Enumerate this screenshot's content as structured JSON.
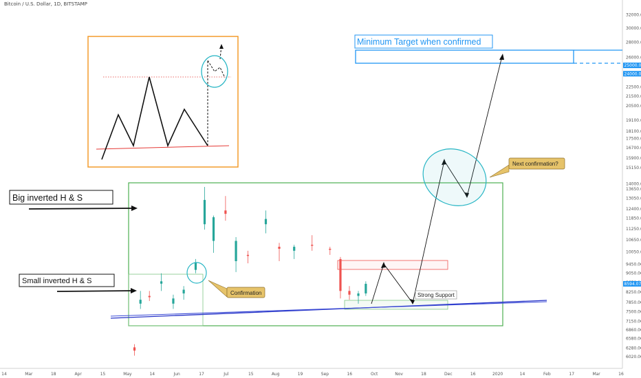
{
  "header": {
    "title": "Bitcoin / U.S. Dollar, 1D, BITSTAMP"
  },
  "chart_data": {
    "type": "candlestick",
    "symbol": "Bitcoin / U.S. Dollar",
    "interval": "1D",
    "exchange": "BITSTAMP",
    "y_scale": "log",
    "ylim": [
      5800,
      33500
    ],
    "y_ticks": [
      "32000.00",
      "30000.00",
      "28000.00",
      "26000.00",
      "24000.00",
      "22500.00",
      "21500.00",
      "20500.00",
      "19100.00",
      "18100.00",
      "17500.00",
      "16700.00",
      "15900.00",
      "15150.00",
      "14000.00",
      "13650.00",
      "13050.00",
      "12400.00",
      "11850.00",
      "11250.00",
      "10650.00",
      "10050.00",
      "9450.00",
      "9050.00",
      "8650.00",
      "8250.00",
      "7850.00",
      "7500.00",
      "7150.00",
      "6860.00",
      "6580.00",
      "6280.00",
      "6020.00"
    ],
    "x_ticks": [
      "14",
      "Mar",
      "18",
      "Apr",
      "15",
      "May",
      "14",
      "Jun",
      "17",
      "Jul",
      "15",
      "Aug",
      "19",
      "Sep",
      "16",
      "Oct",
      "Nov",
      "18",
      "Dec",
      "16",
      "2020",
      "14",
      "Feb",
      "17",
      "Mar",
      "16"
    ],
    "price_badges": [
      {
        "label": "25000.00",
        "value": 25000,
        "color": "#2196f3"
      },
      {
        "label": "24000.00",
        "value": 24000,
        "color": "#2196f3"
      },
      {
        "label": "8594.07",
        "value": 8594.07,
        "color": "#2196f3"
      }
    ],
    "candles_ohlc_approx": [
      {
        "date": "2019-05-10",
        "o": 6300,
        "h": 6400,
        "l": 6050,
        "c": 6200
      },
      {
        "date": "2019-05-14",
        "o": 7800,
        "h": 8300,
        "l": 7600,
        "c": 7950
      },
      {
        "date": "2019-05-20",
        "o": 8100,
        "h": 8300,
        "l": 7900,
        "c": 8050
      },
      {
        "date": "2019-05-28",
        "o": 8600,
        "h": 9050,
        "l": 8300,
        "c": 8700
      },
      {
        "date": "2019-06-05",
        "o": 7800,
        "h": 8150,
        "l": 7600,
        "c": 8000
      },
      {
        "date": "2019-06-12",
        "o": 8200,
        "h": 8500,
        "l": 7950,
        "c": 8350
      },
      {
        "date": "2019-06-20",
        "o": 9200,
        "h": 9700,
        "l": 9050,
        "c": 9550
      },
      {
        "date": "2019-06-26",
        "o": 11500,
        "h": 13800,
        "l": 11200,
        "c": 12950
      },
      {
        "date": "2019-07-02",
        "o": 10600,
        "h": 12000,
        "l": 10000,
        "c": 11900
      },
      {
        "date": "2019-07-10",
        "o": 12300,
        "h": 13200,
        "l": 11700,
        "c": 12100
      },
      {
        "date": "2019-07-17",
        "o": 9600,
        "h": 10800,
        "l": 9100,
        "c": 10600
      },
      {
        "date": "2019-07-25",
        "o": 9900,
        "h": 10100,
        "l": 9500,
        "c": 9850
      },
      {
        "date": "2019-08-06",
        "o": 11500,
        "h": 12300,
        "l": 11000,
        "c": 11800
      },
      {
        "date": "2019-08-15",
        "o": 10300,
        "h": 10500,
        "l": 9600,
        "c": 10200
      },
      {
        "date": "2019-08-25",
        "o": 10100,
        "h": 10400,
        "l": 9700,
        "c": 10300
      },
      {
        "date": "2019-09-06",
        "o": 10400,
        "h": 10900,
        "l": 10100,
        "c": 10350
      },
      {
        "date": "2019-09-18",
        "o": 10200,
        "h": 10300,
        "l": 9900,
        "c": 10150
      },
      {
        "date": "2019-09-25",
        "o": 9700,
        "h": 9800,
        "l": 8000,
        "c": 8300
      },
      {
        "date": "2019-10-01",
        "o": 8300,
        "h": 8500,
        "l": 7950,
        "c": 8150
      },
      {
        "date": "2019-10-07",
        "o": 8100,
        "h": 8300,
        "l": 7800,
        "c": 8200
      },
      {
        "date": "2019-10-12",
        "o": 8200,
        "h": 8700,
        "l": 8100,
        "c": 8594
      }
    ]
  },
  "annotations": {
    "big_hs_label": "Big inverted H & S",
    "small_hs_label": "Small inverted H & S",
    "confirmation_label": "Confirmation",
    "next_confirmation_label": "Next confirmation?",
    "strong_support_label": "Strong Support",
    "target_label": "Minimum Target when confirmed"
  },
  "colors": {
    "up_candle": "#26a69a",
    "down_candle": "#ef5350",
    "trendline": "#2633c7",
    "box_green": "#4caf50",
    "target_blue": "#2196f3",
    "inset_orange": "#f39c2b",
    "ellipse_teal": "#26b5c4",
    "callout_fill": "#e6c36a"
  }
}
